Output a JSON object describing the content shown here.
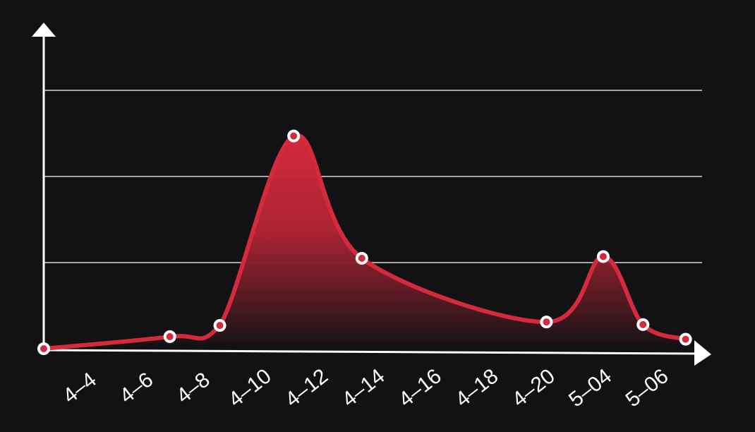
{
  "chart_data": {
    "type": "area",
    "title": "",
    "xlabel": "",
    "ylabel": "",
    "x_tick_labels": [
      "4–4",
      "4–6",
      "4–8",
      "4–10",
      "4–12",
      "4–14",
      "4–16",
      "4–18",
      "4–20",
      "5–04",
      "5–06"
    ],
    "grid": true,
    "gridlines_y": [
      10,
      20,
      30
    ],
    "ylim": [
      0,
      30
    ],
    "xlim": [
      0,
      10.6
    ],
    "series": [
      {
        "points": [
          {
            "x": 0.0,
            "y": 0.0
          },
          {
            "x": 2.22,
            "y": 1.4
          },
          {
            "x": 3.1,
            "y": 2.7
          },
          {
            "x": 4.4,
            "y": 24.7
          },
          {
            "x": 5.6,
            "y": 10.5
          },
          {
            "x": 8.85,
            "y": 3.1
          },
          {
            "x": 9.85,
            "y": 10.7
          },
          {
            "x": 10.55,
            "y": 2.8
          },
          {
            "x": 11.3,
            "y": 1.1
          }
        ]
      }
    ],
    "colors": {
      "line": "#d42a3c",
      "fill_top": "#d42a3c",
      "fill_bottom": "#121215",
      "marker_stroke": "#ffffff",
      "marker_fill": "#d42a3c",
      "axis": "#ffffff",
      "grid": "#d8d8d8",
      "background": "#121215"
    }
  }
}
